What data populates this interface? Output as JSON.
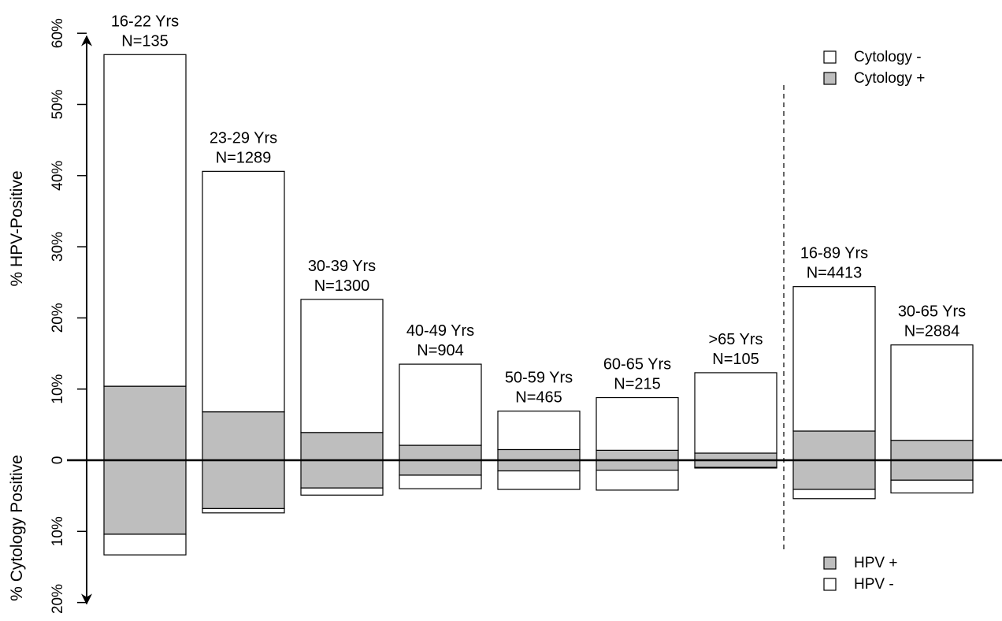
{
  "chart_data": {
    "type": "bar",
    "subtype": "mirrored stacked bar",
    "categories": [
      "16-22 Yrs",
      "23-29 Yrs",
      "30-39 Yrs",
      "40-49 Yrs",
      "50-59 Yrs",
      "60-65 Yrs",
      ">65 Yrs",
      "16-89 Yrs",
      "30-65 Yrs"
    ],
    "n_labels": [
      "N=135",
      "N=1289",
      "N=1300",
      "N=904",
      "N=465",
      "N=215",
      "N=105",
      "N=4413",
      "N=2884"
    ],
    "upper_axis": {
      "label": "% HPV-Positive",
      "range": [
        0,
        60
      ],
      "ticks": [
        "0",
        "10%",
        "20%",
        "30%",
        "40%",
        "50%",
        "60%"
      ]
    },
    "lower_axis": {
      "label": "% Cytology Positive",
      "range": [
        0,
        20
      ],
      "ticks": [
        "10%",
        "20%"
      ]
    },
    "series": [
      {
        "name": "Cytology -",
        "side": "upper",
        "color": "#ffffff",
        "values": [
          46.6,
          33.8,
          18.7,
          11.4,
          5.4,
          7.4,
          11.3,
          20.3,
          13.4
        ]
      },
      {
        "name": "Cytology +",
        "side": "upper",
        "color": "#bebebe",
        "values": [
          10.4,
          6.8,
          3.9,
          2.1,
          1.5,
          1.4,
          1.0,
          4.1,
          2.8
        ]
      },
      {
        "name": "HPV +",
        "side": "lower",
        "color": "#bebebe",
        "values": [
          10.4,
          6.8,
          3.9,
          2.1,
          1.5,
          1.4,
          1.0,
          4.1,
          2.8
        ]
      },
      {
        "name": "HPV -",
        "side": "lower",
        "color": "#ffffff",
        "values": [
          2.9,
          0.6,
          1.0,
          1.9,
          2.6,
          2.8,
          0.1,
          1.3,
          1.8
        ]
      }
    ],
    "legend_upper": [
      "Cytology -",
      "Cytology +"
    ],
    "legend_lower": [
      "HPV +",
      "HPV -"
    ],
    "legend_position": "right",
    "separator_after_category_index": 6
  }
}
